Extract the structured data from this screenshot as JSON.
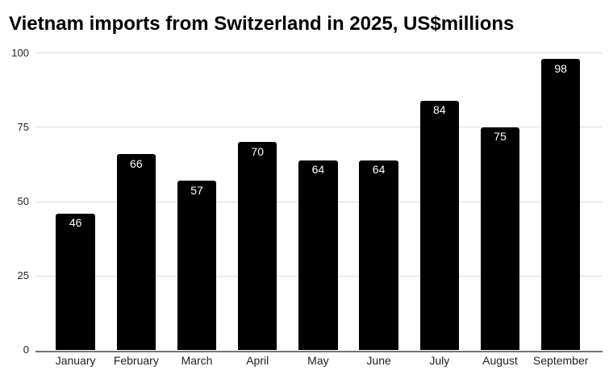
{
  "chart_data": {
    "type": "bar",
    "title": "Vietnam imports from Switzerland in 2025, US$millions",
    "categories": [
      "January",
      "February",
      "March",
      "April",
      "May",
      "June",
      "July",
      "August",
      "September"
    ],
    "values": [
      46,
      66,
      57,
      70,
      64,
      64,
      84,
      75,
      98
    ],
    "xlabel": "",
    "ylabel": "",
    "ylim": [
      0,
      100
    ],
    "yticks": [
      0,
      25,
      50,
      75,
      100
    ],
    "grid": "horizontal",
    "legend": "none",
    "bar_value_labels": [
      "46",
      "66",
      "57",
      "70",
      "64",
      "64",
      "84",
      "75",
      "98"
    ],
    "ytick_labels": [
      "0",
      "25",
      "50",
      "75",
      "100"
    ],
    "colors": {
      "background": "#ffffff",
      "bar": "#000000",
      "bar_value_label": "#ffffff",
      "gridline": "#dddddd",
      "axis_line": "#757575",
      "tick_label": "#222222",
      "title": "#000000"
    }
  }
}
